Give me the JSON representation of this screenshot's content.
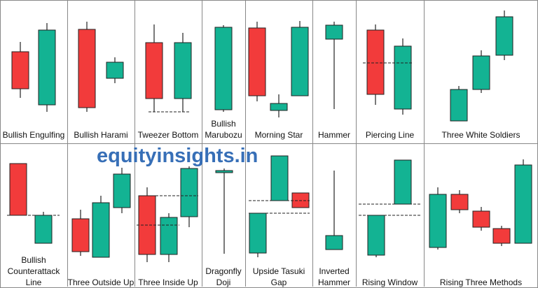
{
  "watermark": "equityinsights.in",
  "patterns": [
    {
      "lines": [
        "Bullish Engulfing"
      ]
    },
    {
      "lines": [
        "Bullish Harami"
      ]
    },
    {
      "lines": [
        "Tweezer Bottom"
      ]
    },
    {
      "lines": [
        "Bullish",
        "Marubozu"
      ]
    },
    {
      "lines": [
        "Morning Star"
      ]
    },
    {
      "lines": [
        "Hammer"
      ]
    },
    {
      "lines": [
        "Piercing Line"
      ]
    },
    {
      "lines": [
        "Three White Soldiers"
      ]
    },
    {
      "lines": [
        "Bullish",
        "Counterattack",
        "Line"
      ]
    },
    {
      "lines": [
        "Three Outside Up"
      ]
    },
    {
      "lines": [
        "Three Inside Up"
      ]
    },
    {
      "lines": [
        "Dragonfly",
        "Doji"
      ]
    },
    {
      "lines": [
        "Upside Tasuki",
        "Gap"
      ]
    },
    {
      "lines": [
        "Inverted",
        "Hammer"
      ]
    },
    {
      "lines": [
        "Rising Window"
      ]
    },
    {
      "lines": [
        "Rising Three Methods"
      ]
    }
  ]
}
